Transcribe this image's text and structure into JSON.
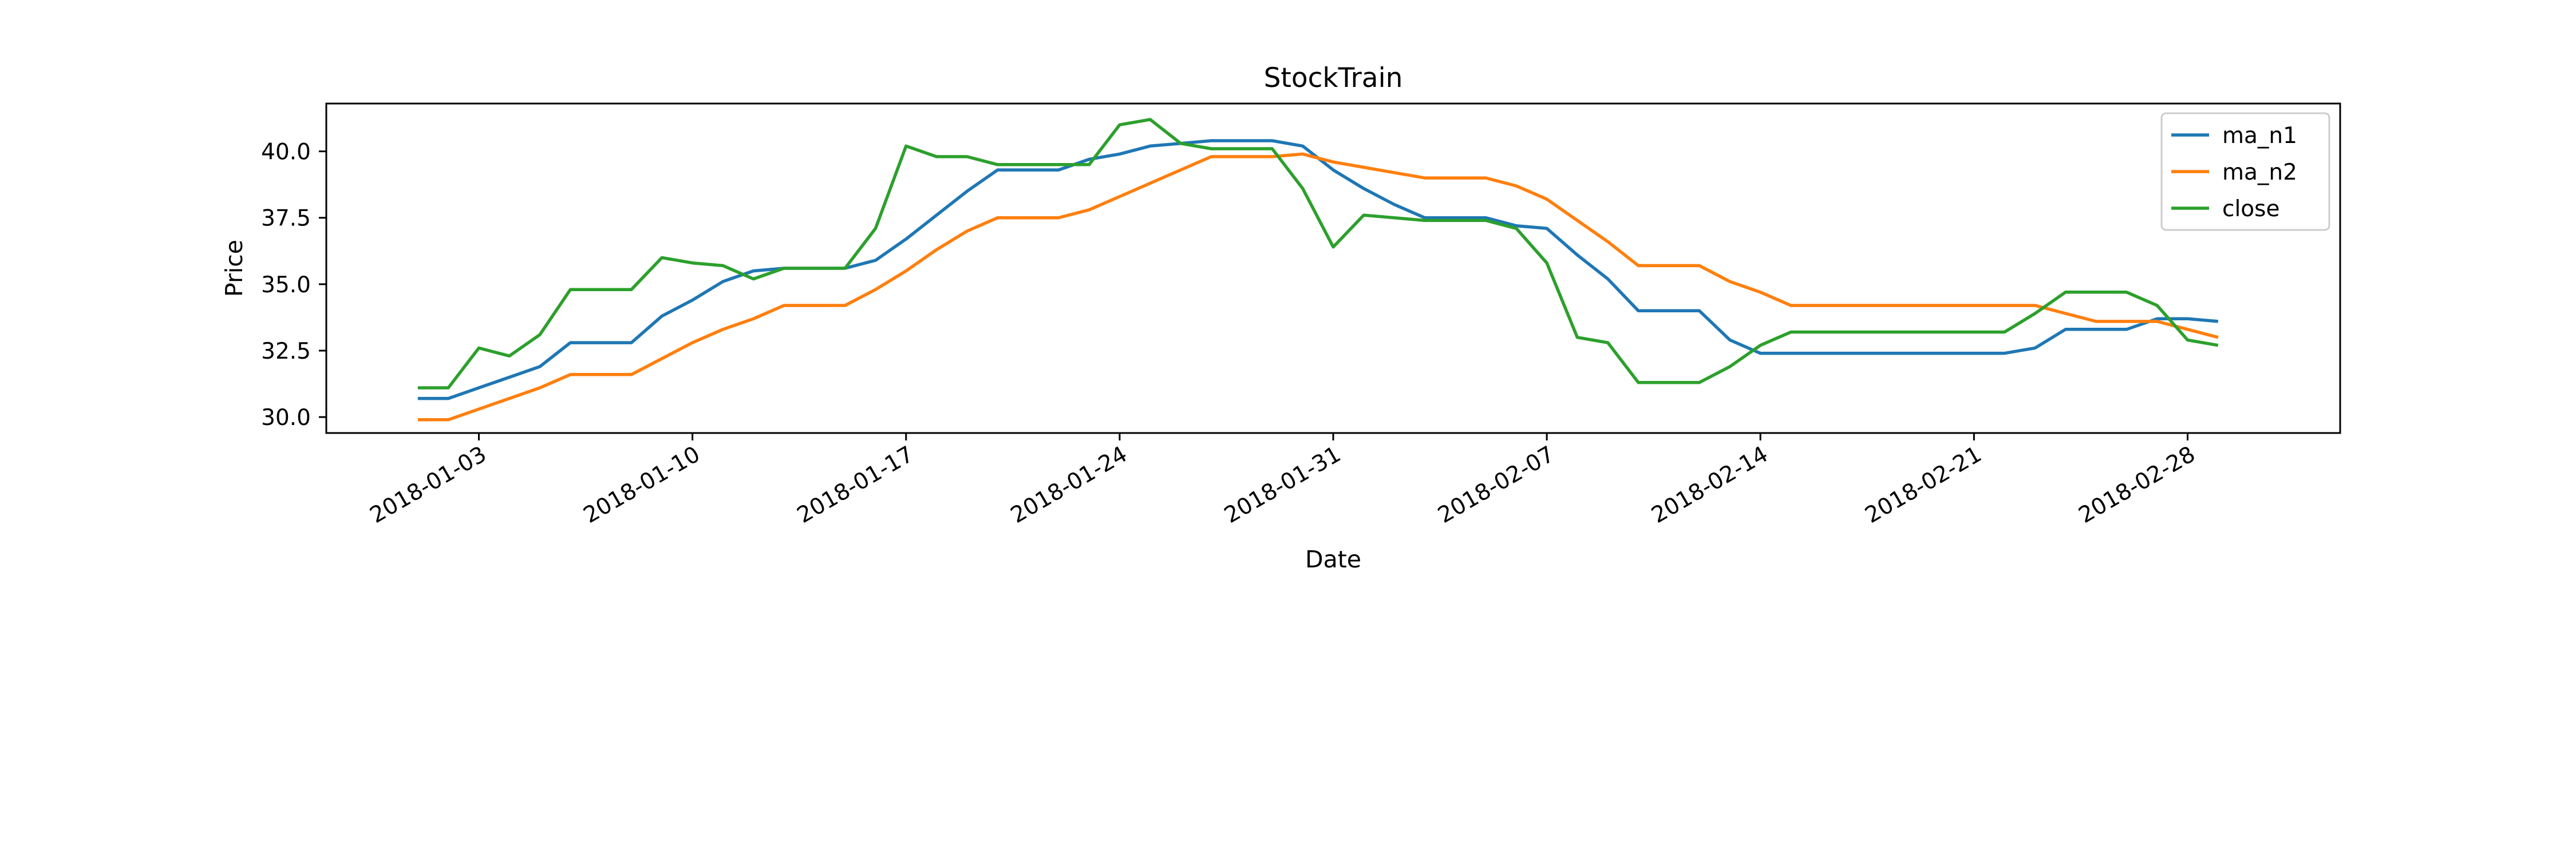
{
  "chart_data": {
    "type": "line",
    "title": "StockTrain",
    "xlabel": "Date",
    "ylabel": "Price",
    "x_dates": [
      "2018-01-01",
      "2018-01-02",
      "2018-01-03",
      "2018-01-04",
      "2018-01-05",
      "2018-01-06",
      "2018-01-07",
      "2018-01-08",
      "2018-01-09",
      "2018-01-10",
      "2018-01-11",
      "2018-01-12",
      "2018-01-13",
      "2018-01-14",
      "2018-01-15",
      "2018-01-16",
      "2018-01-17",
      "2018-01-18",
      "2018-01-19",
      "2018-01-20",
      "2018-01-21",
      "2018-01-22",
      "2018-01-23",
      "2018-01-24",
      "2018-01-25",
      "2018-01-26",
      "2018-01-27",
      "2018-01-28",
      "2018-01-29",
      "2018-01-30",
      "2018-01-31",
      "2018-02-01",
      "2018-02-02",
      "2018-02-03",
      "2018-02-04",
      "2018-02-05",
      "2018-02-06",
      "2018-02-07",
      "2018-02-08",
      "2018-02-09",
      "2018-02-10",
      "2018-02-11",
      "2018-02-12",
      "2018-02-13",
      "2018-02-14",
      "2018-02-15",
      "2018-02-16",
      "2018-02-17",
      "2018-02-18",
      "2018-02-19",
      "2018-02-20",
      "2018-02-21",
      "2018-02-22",
      "2018-02-23",
      "2018-02-24",
      "2018-02-25",
      "2018-02-26",
      "2018-02-27",
      "2018-02-28",
      "2018-03-01"
    ],
    "series": [
      {
        "name": "ma_n1",
        "color": "#1f77b4",
        "values": [
          30.7,
          30.7,
          31.1,
          31.5,
          31.9,
          32.8,
          32.8,
          32.8,
          33.8,
          34.4,
          35.1,
          35.5,
          35.6,
          35.6,
          35.6,
          35.9,
          36.7,
          37.6,
          38.5,
          39.3,
          39.3,
          39.3,
          39.7,
          39.9,
          40.2,
          40.3,
          40.4,
          40.4,
          40.4,
          40.2,
          39.3,
          38.6,
          38.0,
          37.5,
          37.5,
          37.5,
          37.2,
          37.1,
          36.1,
          35.2,
          34.0,
          34.0,
          34.0,
          32.9,
          32.4,
          32.4,
          32.4,
          32.4,
          32.4,
          32.4,
          32.4,
          32.4,
          32.4,
          32.6,
          33.3,
          33.3,
          33.3,
          33.7,
          33.7,
          33.6
        ]
      },
      {
        "name": "ma_n2",
        "color": "#ff7f0e",
        "values": [
          29.9,
          29.9,
          30.3,
          30.7,
          31.1,
          31.6,
          31.6,
          31.6,
          32.2,
          32.8,
          33.3,
          33.7,
          34.2,
          34.2,
          34.2,
          34.8,
          35.5,
          36.3,
          37.0,
          37.5,
          37.5,
          37.5,
          37.8,
          38.3,
          38.8,
          39.3,
          39.8,
          39.8,
          39.8,
          39.9,
          39.6,
          39.4,
          39.2,
          39.0,
          39.0,
          39.0,
          38.7,
          38.2,
          37.4,
          36.6,
          35.7,
          35.7,
          35.7,
          35.1,
          34.7,
          34.2,
          34.2,
          34.2,
          34.2,
          34.2,
          34.2,
          34.2,
          34.2,
          34.2,
          33.9,
          33.6,
          33.6,
          33.6,
          33.3,
          33.0
        ]
      },
      {
        "name": "close",
        "color": "#2ca02c",
        "values": [
          31.1,
          31.1,
          32.6,
          32.3,
          33.1,
          34.8,
          34.8,
          34.8,
          36.0,
          35.8,
          35.7,
          35.2,
          35.6,
          35.6,
          35.6,
          37.1,
          40.2,
          39.8,
          39.8,
          39.5,
          39.5,
          39.5,
          39.5,
          41.0,
          41.2,
          40.3,
          40.1,
          40.1,
          40.1,
          38.6,
          36.4,
          37.6,
          37.5,
          37.4,
          37.4,
          37.4,
          37.1,
          35.8,
          33.0,
          32.8,
          31.3,
          31.3,
          31.3,
          31.9,
          32.7,
          33.2,
          33.2,
          33.2,
          33.2,
          33.2,
          33.2,
          33.2,
          33.2,
          33.9,
          34.7,
          34.7,
          34.7,
          34.2,
          32.9,
          32.7
        ]
      }
    ],
    "yticks": [
      30.0,
      32.5,
      35.0,
      37.5,
      40.0
    ],
    "ytick_labels": [
      "30.0",
      "32.5",
      "35.0",
      "37.5",
      "40.0"
    ],
    "xticks": [
      "2018-01-03",
      "2018-01-10",
      "2018-01-17",
      "2018-01-24",
      "2018-01-31",
      "2018-02-07",
      "2018-02-14",
      "2018-02-21",
      "2018-02-28"
    ],
    "ylim": [
      29.4,
      41.8
    ],
    "xlim": [
      "2017-12-29",
      "2018-03-05"
    ],
    "grid": false,
    "legend_position": "top-right"
  }
}
